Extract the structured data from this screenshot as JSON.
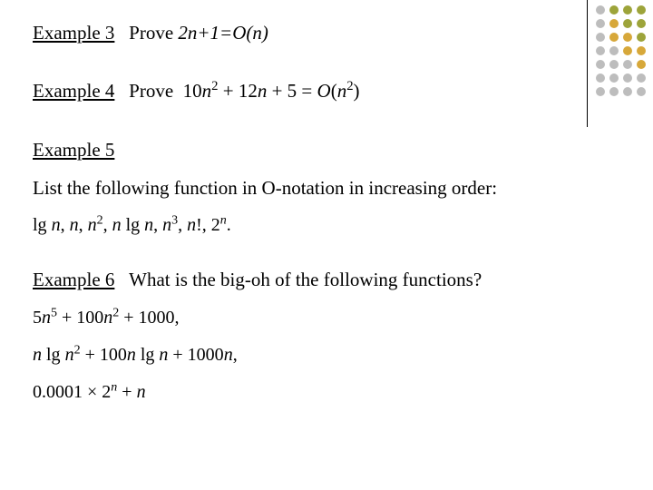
{
  "ex3": {
    "label": "Example 3",
    "prove_word": "Prove",
    "expr": "2n+1=O(n)"
  },
  "ex4": {
    "label": "Example 4",
    "prove_word": "Prove",
    "expr_html": "10<i>n</i><sup>2</sup> + 12<i>n</i> + 5 = <i>O</i>(<i>n</i><sup>2</sup>)"
  },
  "ex5": {
    "label": "Example 5",
    "prompt": "List the following function in O-notation in increasing order:",
    "functions_html": "lg <i>n</i>, <i>n</i>, <i>n</i><sup>2</sup>, <i>n</i> lg <i>n</i>, <i>n</i><sup>3</sup>, <i>n</i>!, 2<sup><i>n</i></sup>."
  },
  "ex6": {
    "label": "Example 6",
    "question": "What is the big-oh of the following functions?",
    "f1_html": "5<i>n</i><sup>5</sup> + 100<i>n</i><sup>2</sup> + 1000,",
    "f2_html": "<i>n</i> lg <i>n</i><sup>2</sup> + 100<i>n</i> lg <i>n</i> + 1000<i>n</i>,",
    "f3_html": "0.0001 &times; 2<sup><i>n</i></sup> + <i>n</i>"
  },
  "dot_colors": {
    "olive": "#9da43a",
    "mango": "#d7a83a",
    "grey": "#bdbdbd"
  },
  "dot_pattern": [
    [
      "grey",
      "olive",
      "olive",
      "olive"
    ],
    [
      "grey",
      "mango",
      "olive",
      "olive"
    ],
    [
      "grey",
      "mango",
      "mango",
      "olive"
    ],
    [
      "grey",
      "grey",
      "mango",
      "mango"
    ],
    [
      "grey",
      "grey",
      "grey",
      "mango"
    ],
    [
      "grey",
      "grey",
      "grey",
      "grey"
    ],
    [
      "grey",
      "grey",
      "grey",
      "grey"
    ]
  ]
}
